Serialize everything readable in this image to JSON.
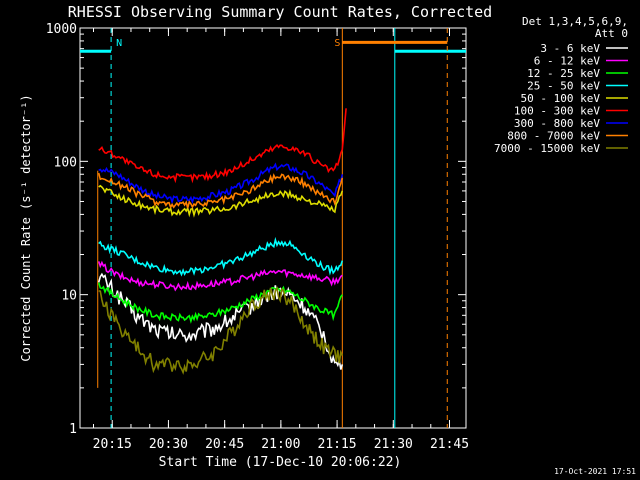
{
  "chart_data": {
    "type": "line",
    "title": "RHESSI Observing Summary Count Rates, Corrected",
    "xlabel": "Start Time (17-Dec-10 20:06:22)",
    "ylabel": "Corrected Count Rate (s⁻¹ detector⁻¹)",
    "yscale": "log",
    "ylim": [
      1,
      1000
    ],
    "xlim_minutes": [
      0,
      103
    ],
    "xticks": [
      {
        "label": "20:15",
        "t": 8.6
      },
      {
        "label": "20:30",
        "t": 23.6
      },
      {
        "label": "20:45",
        "t": 38.6
      },
      {
        "label": "21:00",
        "t": 53.6
      },
      {
        "label": "21:15",
        "t": 68.6
      },
      {
        "label": "21:30",
        "t": 83.6
      },
      {
        "label": "21:45",
        "t": 98.6
      }
    ],
    "yticks": [
      {
        "label": "1",
        "v": 1
      },
      {
        "label": "10",
        "v": 10
      },
      {
        "label": "100",
        "v": 100
      },
      {
        "label": "1000",
        "v": 1000
      }
    ],
    "legend_header": [
      "Det 1,3,4,5,6,9,",
      "Att 0"
    ],
    "legend_position": "top-right",
    "series": [
      {
        "name": "3 - 6 keV",
        "color": "#ffffff",
        "points": [
          [
            5,
            14
          ],
          [
            10,
            10
          ],
          [
            15,
            7
          ],
          [
            20,
            5.5
          ],
          [
            25,
            5
          ],
          [
            30,
            5
          ],
          [
            35,
            5.5
          ],
          [
            40,
            6.5
          ],
          [
            45,
            8
          ],
          [
            50,
            10
          ],
          [
            53,
            10.5
          ],
          [
            56,
            10
          ],
          [
            60,
            8
          ],
          [
            65,
            5
          ],
          [
            68,
            3
          ],
          [
            70,
            3
          ]
        ]
      },
      {
        "name": "6 - 12 keV",
        "color": "#ff00ff",
        "points": [
          [
            5,
            17
          ],
          [
            10,
            14
          ],
          [
            15,
            12.5
          ],
          [
            20,
            12
          ],
          [
            25,
            11.5
          ],
          [
            30,
            11.5
          ],
          [
            35,
            12
          ],
          [
            40,
            12.5
          ],
          [
            45,
            13.5
          ],
          [
            50,
            14.5
          ],
          [
            53,
            15
          ],
          [
            56,
            14.5
          ],
          [
            60,
            14
          ],
          [
            65,
            13
          ],
          [
            68,
            12.5
          ],
          [
            70,
            14
          ]
        ]
      },
      {
        "name": "12 - 25 keV",
        "color": "#00ff00",
        "points": [
          [
            5,
            12
          ],
          [
            10,
            9.5
          ],
          [
            15,
            8
          ],
          [
            20,
            7
          ],
          [
            25,
            6.7
          ],
          [
            30,
            6.7
          ],
          [
            35,
            7
          ],
          [
            40,
            7.8
          ],
          [
            45,
            9
          ],
          [
            50,
            10.5
          ],
          [
            53,
            11
          ],
          [
            56,
            10.5
          ],
          [
            60,
            9
          ],
          [
            65,
            7.5
          ],
          [
            68,
            7
          ],
          [
            70,
            10
          ]
        ]
      },
      {
        "name": "25 - 50 keV",
        "color": "#00ffff",
        "points": [
          [
            5,
            24
          ],
          [
            10,
            21
          ],
          [
            15,
            18
          ],
          [
            20,
            16
          ],
          [
            25,
            15
          ],
          [
            30,
            15
          ],
          [
            35,
            16
          ],
          [
            40,
            17.5
          ],
          [
            45,
            20
          ],
          [
            50,
            23
          ],
          [
            53,
            25
          ],
          [
            56,
            24
          ],
          [
            60,
            20
          ],
          [
            65,
            16
          ],
          [
            68,
            15
          ],
          [
            70,
            18
          ]
        ]
      },
      {
        "name": "50 - 100 keV",
        "color": "#dddd00",
        "points": [
          [
            5,
            65
          ],
          [
            10,
            55
          ],
          [
            15,
            48
          ],
          [
            20,
            44
          ],
          [
            25,
            42
          ],
          [
            30,
            42
          ],
          [
            35,
            43
          ],
          [
            40,
            45
          ],
          [
            45,
            50
          ],
          [
            50,
            55
          ],
          [
            53,
            57
          ],
          [
            56,
            56
          ],
          [
            60,
            52
          ],
          [
            65,
            46
          ],
          [
            68,
            43
          ],
          [
            70,
            60
          ]
        ]
      },
      {
        "name": "100 - 300 keV",
        "color": "#ff0000",
        "points": [
          [
            5,
            125
          ],
          [
            10,
            110
          ],
          [
            15,
            90
          ],
          [
            20,
            80
          ],
          [
            25,
            76
          ],
          [
            30,
            76
          ],
          [
            35,
            78
          ],
          [
            40,
            85
          ],
          [
            45,
            100
          ],
          [
            50,
            120
          ],
          [
            53,
            130
          ],
          [
            56,
            128
          ],
          [
            60,
            115
          ],
          [
            65,
            90
          ],
          [
            68,
            85
          ],
          [
            70,
            120
          ],
          [
            71,
            250
          ]
        ]
      },
      {
        "name": "300 - 800 keV",
        "color": "#0000ff",
        "points": [
          [
            5,
            90
          ],
          [
            10,
            80
          ],
          [
            15,
            65
          ],
          [
            20,
            55
          ],
          [
            25,
            52
          ],
          [
            30,
            52
          ],
          [
            35,
            55
          ],
          [
            40,
            60
          ],
          [
            45,
            70
          ],
          [
            50,
            85
          ],
          [
            53,
            92
          ],
          [
            56,
            90
          ],
          [
            60,
            80
          ],
          [
            65,
            65
          ],
          [
            68,
            55
          ],
          [
            70,
            80
          ]
        ]
      },
      {
        "name": "800 - 7000 keV",
        "color": "#ff8000",
        "points": [
          [
            5,
            78
          ],
          [
            10,
            68
          ],
          [
            15,
            58
          ],
          [
            20,
            50
          ],
          [
            25,
            47
          ],
          [
            30,
            47
          ],
          [
            35,
            49
          ],
          [
            40,
            53
          ],
          [
            45,
            60
          ],
          [
            50,
            72
          ],
          [
            53,
            78
          ],
          [
            56,
            76
          ],
          [
            60,
            68
          ],
          [
            65,
            55
          ],
          [
            68,
            50
          ],
          [
            70,
            75
          ]
        ]
      },
      {
        "name": "7000 - 15000 keV",
        "color": "#808000",
        "points": [
          [
            5,
            10
          ],
          [
            10,
            6
          ],
          [
            15,
            4
          ],
          [
            20,
            3
          ],
          [
            25,
            3
          ],
          [
            30,
            3
          ],
          [
            35,
            3.5
          ],
          [
            40,
            5
          ],
          [
            45,
            8
          ],
          [
            50,
            10
          ],
          [
            53,
            10.5
          ],
          [
            56,
            9
          ],
          [
            60,
            6
          ],
          [
            65,
            4
          ],
          [
            68,
            3.5
          ],
          [
            70,
            3.5
          ]
        ]
      }
    ],
    "annotations": [
      {
        "text": "N",
        "color": "#00ffff",
        "t": 8.3
      },
      {
        "text": "S",
        "color": "#ff8000",
        "t": 70
      }
    ],
    "night_intervals": [
      [
        0,
        8.3
      ],
      [
        84,
        103
      ]
    ],
    "saa_intervals": [
      [
        70,
        98
      ]
    ]
  },
  "footer": {
    "timestamp": "17-Oct-2021 17:51"
  }
}
